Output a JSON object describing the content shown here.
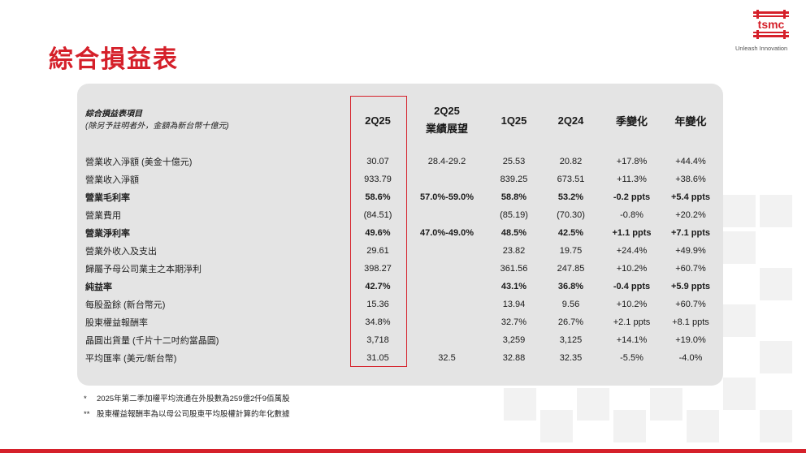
{
  "title": "綜合損益表",
  "brand": {
    "logo_text": "tsmc",
    "tagline": "Unleash Innovation",
    "accent": "#d5202a"
  },
  "table": {
    "header_label_line1": "綜合損益表項目",
    "header_label_line2": "(除另予註明者外，金額為新台幣十億元)",
    "columns": [
      "2Q25",
      "2Q25\n業績展望",
      "1Q25",
      "2Q24",
      "季變化",
      "年變化"
    ],
    "rows": [
      {
        "label": "營業收入淨額 (美金十億元)",
        "values": [
          "30.07",
          "28.4-29.2",
          "25.53",
          "20.82",
          "+17.8%",
          "+44.4%"
        ],
        "bold": false
      },
      {
        "label": "營業收入淨額",
        "values": [
          "933.79",
          "",
          "839.25",
          "673.51",
          "+11.3%",
          "+38.6%"
        ],
        "bold": false
      },
      {
        "label": "營業毛利率",
        "values": [
          "58.6%",
          "57.0%-59.0%",
          "58.8%",
          "53.2%",
          "-0.2 ppts",
          "+5.4 ppts"
        ],
        "bold": true
      },
      {
        "label": "營業費用",
        "values": [
          "(84.51)",
          "",
          "(85.19)",
          "(70.30)",
          "-0.8%",
          "+20.2%"
        ],
        "bold": false
      },
      {
        "label": "營業淨利率",
        "values": [
          "49.6%",
          "47.0%-49.0%",
          "48.5%",
          "42.5%",
          "+1.1 ppts",
          "+7.1 ppts"
        ],
        "bold": true
      },
      {
        "label": "營業外收入及支出",
        "values": [
          "29.61",
          "",
          "23.82",
          "19.75",
          "+24.4%",
          "+49.9%"
        ],
        "bold": false
      },
      {
        "label": "歸屬予母公司業主之本期淨利",
        "values": [
          "398.27",
          "",
          "361.56",
          "247.85",
          "+10.2%",
          "+60.7%"
        ],
        "bold": false
      },
      {
        "label": "純益率",
        "values": [
          "42.7%",
          "",
          "43.1%",
          "36.8%",
          "-0.4 ppts",
          "+5.9 ppts"
        ],
        "bold": true
      },
      {
        "label": "每股盈餘 (新台幣元)",
        "values": [
          "15.36",
          "",
          "13.94",
          "9.56",
          "+10.2%",
          "+60.7%"
        ],
        "bold": false
      },
      {
        "label": "股東權益報酬率",
        "values": [
          "34.8%",
          "",
          "32.7%",
          "26.7%",
          "+2.1 ppts",
          "+8.1 ppts"
        ],
        "bold": false
      },
      {
        "label": "晶圓出貨量 (千片十二吋約當晶圓)",
        "values": [
          "3,718",
          "",
          "3,259",
          "3,125",
          "+14.1%",
          "+19.0%"
        ],
        "bold": false
      },
      {
        "label": "平均匯率 (美元/新台幣)",
        "values": [
          "31.05",
          "32.5",
          "32.88",
          "32.35",
          "-5.5%",
          "-4.0%"
        ],
        "bold": false
      }
    ]
  },
  "footnotes": [
    {
      "mark": "*",
      "text": "2025年第二季加權平均流通在外股數為259億2仟9佰萬股"
    },
    {
      "mark": "**",
      "text": "股東權益報酬率為以母公司股東平均股權計算的年化數據"
    }
  ]
}
